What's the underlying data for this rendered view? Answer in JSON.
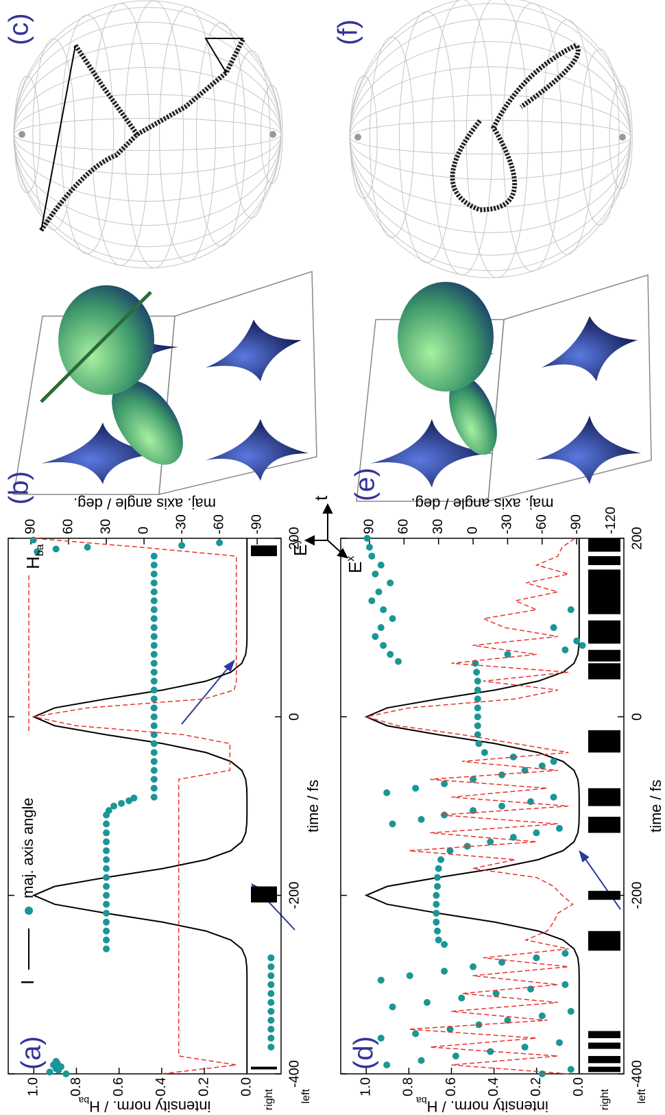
{
  "chart_data": [
    {
      "type": "line",
      "label": "(a)",
      "legend": true,
      "xlabel": "time / fs",
      "ylabel": "intensity norm. / H",
      "ylabel_sub": "ba",
      "y2label": "maj. axis angle / deg.",
      "xlim": [
        -400,
        200
      ],
      "xticks": [
        -400,
        -200,
        0,
        200
      ],
      "ylim": [
        -0.16,
        1.12
      ],
      "yticks": [
        {
          "value": 0,
          "label": "0.0"
        },
        0.2,
        0.4,
        0.6,
        0.8,
        {
          "value": 1,
          "label": "1.0"
        }
      ],
      "y2lim": [
        -109,
        108
      ],
      "y2ticks": [
        -90,
        -60,
        -30,
        0,
        30,
        60,
        90
      ],
      "strip_labels": [
        "right",
        "left"
      ],
      "bars": [
        {
          "start": -395,
          "end": -392
        },
        {
          "start": -208,
          "end": -190
        },
        {
          "start": 180,
          "end": 192
        }
      ],
      "x": [
        -400,
        -390,
        -380,
        -370,
        -360,
        -350,
        -340,
        -330,
        -320,
        -310,
        -300,
        -290,
        -280,
        -270,
        -260,
        -250,
        -240,
        -230,
        -220,
        -210,
        -200,
        -190,
        -180,
        -170,
        -160,
        -150,
        -140,
        -130,
        -120,
        -110,
        -100,
        -90,
        -80,
        -70,
        -60,
        -50,
        -40,
        -30,
        -20,
        -10,
        0,
        10,
        20,
        30,
        40,
        50,
        60,
        70,
        80,
        90,
        100,
        110,
        120,
        130,
        140,
        150,
        160,
        170,
        180,
        190,
        200
      ],
      "series": [
        {
          "name": "I",
          "color": "#000000",
          "dashed": false,
          "values": [
            0,
            0,
            0,
            0,
            0,
            0,
            0,
            0,
            0,
            0,
            0,
            0,
            0.001,
            0.006,
            0.024,
            0.076,
            0.192,
            0.395,
            0.662,
            0.902,
            1.0,
            0.902,
            0.662,
            0.395,
            0.192,
            0.076,
            0.024,
            0.006,
            0.001,
            0,
            0,
            0,
            0.001,
            0.006,
            0.024,
            0.076,
            0.192,
            0.395,
            0.662,
            0.902,
            1.0,
            0.902,
            0.662,
            0.395,
            0.192,
            0.076,
            0.024,
            0.006,
            0.001,
            0,
            0,
            0,
            0,
            0,
            0,
            0,
            0,
            0,
            0,
            0,
            0
          ]
        },
        {
          "name": "maj. axis angle",
          "color": "#1a9696",
          "type": "scatter",
          "axis": "y2",
          "x": [
            -400,
            -398,
            -396,
            -394,
            -392,
            -390,
            -388,
            -386,
            -370,
            -360,
            -350,
            -340,
            -330,
            -320,
            -310,
            -300,
            -290,
            -280,
            -270,
            -260,
            -250,
            -240,
            -230,
            -220,
            -210,
            -200,
            -190,
            -180,
            -170,
            -160,
            -150,
            -140,
            -130,
            -120,
            -110,
            -105,
            -100,
            -97,
            -94,
            -91,
            -90,
            -80,
            -70,
            -60,
            -50,
            -40,
            -30,
            -20,
            -10,
            0,
            10,
            20,
            30,
            40,
            50,
            60,
            70,
            80,
            90,
            100,
            110,
            120,
            130,
            140,
            150,
            160,
            170,
            180,
            185,
            188,
            190,
            192,
            195,
            198
          ],
          "values": [
            62,
            75,
            68,
            70,
            66,
            72,
            69,
            70,
            -101,
            -101,
            -101,
            -101,
            -101,
            -101,
            -101,
            -101,
            -101,
            -101,
            -101,
            30,
            30,
            30,
            30,
            30,
            30,
            30,
            30,
            30,
            30,
            30,
            30,
            30,
            30,
            30,
            30,
            28,
            24,
            18,
            12,
            8,
            -8,
            -8,
            -8,
            -8,
            -8,
            -8,
            -8,
            -8,
            -8,
            -8,
            -8,
            -8,
            -8,
            -8,
            -8,
            -8,
            -8,
            -8,
            -8,
            -8,
            -8,
            -8,
            -8,
            -8,
            -8,
            -8,
            -8,
            -8,
            85,
            70,
            45,
            -30,
            -60,
            88
          ]
        },
        {
          "name": "H",
          "name_sub": "ba",
          "color": "#e8302a",
          "dashed": true,
          "values": [
            0.4,
            0.05,
            0.32,
            0.32,
            0.32,
            0.32,
            0.32,
            0.32,
            0.32,
            0.32,
            0.32,
            0.32,
            0.32,
            0.32,
            0.32,
            0.32,
            0.32,
            0.32,
            0.32,
            0.32,
            0.32,
            0.32,
            0.32,
            0.32,
            0.32,
            0.32,
            0.32,
            0.32,
            0.32,
            0.32,
            0.32,
            0.32,
            0.32,
            0.32,
            0.08,
            0.08,
            0.08,
            0.08,
            0.3,
            0.8,
            1.0,
            0.75,
            0.2,
            0.06,
            0.05,
            0.05,
            0.05,
            0.05,
            0.05,
            0.05,
            0.05,
            0.05,
            0.05,
            0.05,
            0.05,
            0.05,
            0.05,
            0.05,
            0.05,
            0.5,
            1.0
          ]
        }
      ]
    },
    {
      "type": "line",
      "label": "(d)",
      "legend": false,
      "xlabel": "time / fs",
      "ylabel": "intensity norm. / H",
      "ylabel_sub": "ba",
      "y2label": "maj. axis angle / deg.",
      "xlim": [
        -400,
        200
      ],
      "xticks": [
        -400,
        -200,
        0,
        200
      ],
      "ylim": [
        -0.21,
        1.12
      ],
      "yticks": [
        {
          "value": 0,
          "label": "0.0"
        },
        0.2,
        0.4,
        0.6,
        0.8,
        {
          "value": 1,
          "label": "1.0"
        }
      ],
      "y2lim": [
        -131,
        115
      ],
      "y2ticks": [
        -120,
        -90,
        -60,
        -30,
        0,
        30,
        60,
        90
      ],
      "strip_labels": [
        "right",
        "left"
      ],
      "bars": [
        {
          "start": -398,
          "end": -392
        },
        {
          "start": -388,
          "end": -380
        },
        {
          "start": -372,
          "end": -365
        },
        {
          "start": -360,
          "end": -352
        },
        {
          "start": -262,
          "end": -240
        },
        {
          "start": -205,
          "end": -195
        },
        {
          "start": -130,
          "end": -112
        },
        {
          "start": -100,
          "end": -80
        },
        {
          "start": -40,
          "end": -15
        },
        {
          "start": 42,
          "end": 60
        },
        {
          "start": 62,
          "end": 75
        },
        {
          "start": 82,
          "end": 108
        },
        {
          "start": 115,
          "end": 165
        },
        {
          "start": 170,
          "end": 180
        },
        {
          "start": 185,
          "end": 200
        }
      ],
      "x": [
        -400,
        -390,
        -380,
        -370,
        -360,
        -350,
        -340,
        -330,
        -320,
        -310,
        -300,
        -290,
        -280,
        -270,
        -260,
        -250,
        -240,
        -230,
        -220,
        -210,
        -200,
        -190,
        -180,
        -170,
        -160,
        -150,
        -140,
        -130,
        -120,
        -110,
        -100,
        -90,
        -80,
        -70,
        -60,
        -50,
        -40,
        -30,
        -20,
        -10,
        0,
        10,
        20,
        30,
        40,
        50,
        60,
        70,
        80,
        90,
        100,
        110,
        120,
        130,
        140,
        150,
        160,
        170,
        180,
        190,
        200
      ],
      "series": [
        {
          "color": "#000000",
          "dashed": false,
          "values": [
            0,
            0,
            0,
            0,
            0,
            0,
            0,
            0,
            0,
            0,
            0,
            0,
            0.001,
            0.006,
            0.024,
            0.076,
            0.192,
            0.395,
            0.662,
            0.902,
            1.0,
            0.902,
            0.662,
            0.395,
            0.192,
            0.076,
            0.024,
            0.006,
            0.001,
            0,
            0,
            0,
            0.001,
            0.006,
            0.024,
            0.076,
            0.192,
            0.395,
            0.662,
            0.902,
            1.0,
            0.902,
            0.662,
            0.395,
            0.192,
            0.076,
            0.024,
            0.006,
            0.001,
            0,
            0,
            0,
            0,
            0,
            0,
            0,
            0,
            0,
            0,
            0,
            0
          ]
        },
        {
          "color": "#1a9696",
          "type": "scatter",
          "axis": "y2",
          "x": [
            -400,
            -395,
            -390,
            -385,
            -380,
            -375,
            -370,
            -365,
            -360,
            -355,
            -350,
            -345,
            -340,
            -335,
            -330,
            -325,
            -320,
            -315,
            -310,
            -305,
            -300,
            -295,
            -290,
            -285,
            -280,
            -275,
            -270,
            -265,
            -255,
            -250,
            -240,
            -230,
            -220,
            -210,
            -200,
            -190,
            -180,
            -170,
            -160,
            -150,
            -145,
            -140,
            -135,
            -130,
            -125,
            -120,
            -115,
            -110,
            -105,
            -100,
            -95,
            -90,
            -85,
            -80,
            -75,
            -70,
            -65,
            -60,
            -55,
            -50,
            -45,
            -40,
            -30,
            -20,
            -10,
            0,
            10,
            20,
            30,
            40,
            50,
            60,
            70,
            75,
            80,
            85,
            100,
            120,
            62,
            70,
            80,
            90,
            100,
            110,
            120,
            130,
            140,
            150,
            160,
            170,
            180,
            190,
            200
          ],
          "values": [
            -60,
            -85,
            75,
            45,
            15,
            -15,
            -45,
            -75,
            80,
            50,
            20,
            -5,
            -30,
            -60,
            -85,
            70,
            40,
            10,
            -20,
            -50,
            -80,
            80,
            55,
            25,
            0,
            -25,
            -55,
            -80,
            25,
            30,
            31,
            32,
            32,
            32,
            32,
            31,
            31,
            30,
            28,
            20,
            5,
            -15,
            -35,
            -55,
            -75,
            70,
            45,
            25,
            0,
            -25,
            -50,
            -70,
            75,
            50,
            25,
            0,
            -25,
            -45,
            -60,
            -70,
            -35,
            -10,
            -5,
            -4,
            -4,
            -4,
            -4,
            -4,
            -4,
            -4,
            -3,
            -2,
            -30,
            -80,
            -95,
            -90,
            -70,
            -85,
            65,
            72,
            78,
            85,
            80,
            70,
            78,
            88,
            82,
            72,
            85,
            80,
            88,
            90,
            92
          ]
        },
        {
          "color": "#e8302a",
          "dashed": true,
          "values": [
            0.05,
            0.6,
            0.1,
            0.7,
            0.2,
            0.8,
            0.15,
            0.6,
            0.1,
            0.55,
            0.1,
            0.5,
            0.05,
            0.45,
            0.05,
            0.25,
            0.15,
            0.12,
            0.1,
            0.03,
            0.08,
            0.12,
            0.2,
            0.5,
            0.3,
            0.8,
            0.2,
            0.7,
            0.1,
            0.65,
            0.05,
            0.6,
            0.15,
            0.7,
            0.1,
            0.55,
            0.05,
            0.3,
            0.55,
            0.85,
            1.0,
            0.8,
            0.3,
            0.1,
            0.45,
            0.05,
            0.6,
            0.2,
            0.5,
            0.1,
            0.35,
            0.45,
            0.2,
            0.3,
            0.1,
            0.25,
            0.05,
            0.2,
            0.1,
            0.08,
            0.02
          ]
        }
      ]
    }
  ],
  "panels": {
    "b": "(b)",
    "c": "(c)",
    "e": "(e)",
    "f": "(f)"
  },
  "axes_glyph": {
    "ey": "E",
    "ey_sub": "y",
    "ex": "E",
    "ex_sub": "x",
    "t": "t"
  }
}
